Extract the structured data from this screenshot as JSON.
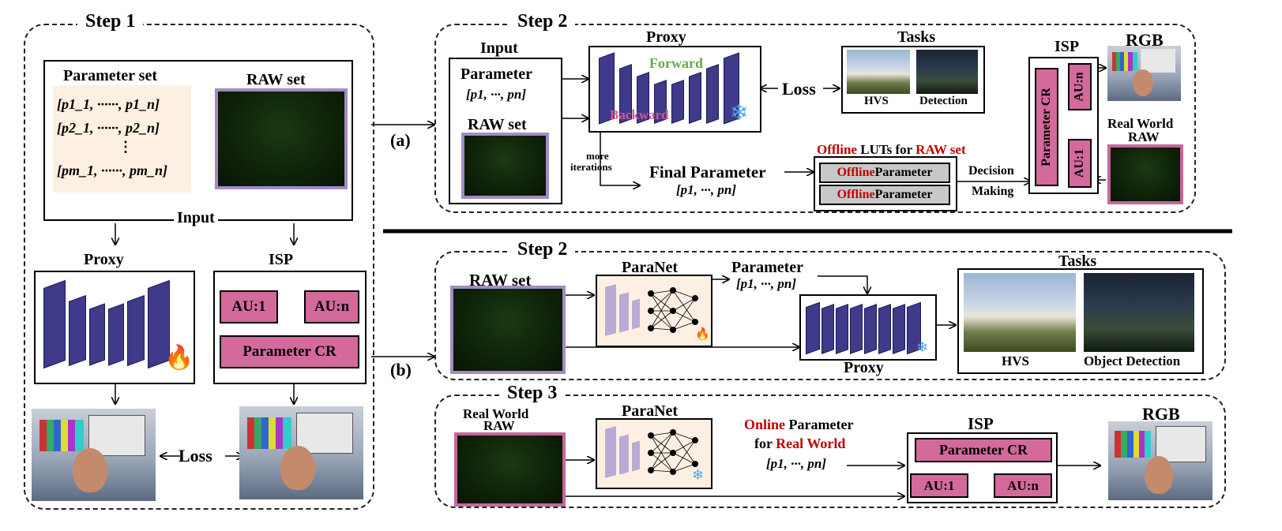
{
  "step1": {
    "title": "Step 1",
    "param_set_title": "Parameter set",
    "param_rows": [
      "[p1_1, ······, p1_n]",
      "[p2_1, ······, p2_n]",
      "⋮",
      "[pm_1, ······, pm_n]"
    ],
    "raw_set_title": "RAW set",
    "input_label": "Input",
    "proxy_label": "Proxy",
    "isp_label": "ISP",
    "au1": "AU:1",
    "aun": "AU:n",
    "dots": "·····",
    "param_cr": "Parameter CR",
    "loss": "Loss"
  },
  "branch_a": "(a)",
  "branch_b": "(b)",
  "step2a": {
    "title": "Step 2",
    "input_title": "Input",
    "parameter": "Parameter",
    "param_vec": "[p1, ···, pn]",
    "raw_set": "RAW set",
    "proxy": "Proxy",
    "forward": "Forward",
    "backward": "Backward",
    "loss": "Loss",
    "tasks": "Tasks",
    "hvs": "HVS",
    "detection": "Detection",
    "more_iter_1": "more",
    "more_iter_2": "iterations",
    "final_param": "Final Parameter",
    "final_vec": "[p1, ···, pn]",
    "luts_offline": "Offline",
    "luts_mid": " LUTs for ",
    "luts_raw": "RAW set",
    "offline": "Offline",
    "parameter_word": " Parameter",
    "decision": "Decision",
    "making": "Making",
    "isp": "ISP",
    "param_cr": "Parameter CR",
    "aun": "AU:n",
    "au1": "AU:1",
    "rgb": "RGB",
    "real_world_1": "Real World",
    "real_world_2": "RAW"
  },
  "step2b": {
    "title": "Step 2",
    "raw_set": "RAW set",
    "paranet": "ParaNet",
    "parameter": "Parameter",
    "param_vec": "[p1, ···, pn]",
    "proxy": "Proxy",
    "tasks": "Tasks",
    "hvs": "HVS",
    "object_detection": "Object Detection"
  },
  "step3": {
    "title": "Step 3",
    "real_world_1": "Real World",
    "real_world_2": "RAW",
    "paranet": "ParaNet",
    "online": "Online",
    "parameter_word": " Parameter",
    "for_word": "for ",
    "real_world": "Real World",
    "param_vec": "[p1, ···, pn]",
    "isp": "ISP",
    "param_cr": "Parameter CR",
    "au1": "AU:1",
    "aun": "AU:n",
    "dots": "·····",
    "rgb": "RGB"
  },
  "colors": {
    "pink": "#d36a9b",
    "proxy_purple": "#3f3a8a",
    "raw_border": "#a48bc4",
    "real_raw_border": "#c4679c",
    "red_text": "#c00000",
    "forward_green": "#8cc46e",
    "backward_pink": "#cf5a93"
  },
  "icons": [
    "fire-icon",
    "snowflake-icon",
    "neural-net-icon"
  ]
}
